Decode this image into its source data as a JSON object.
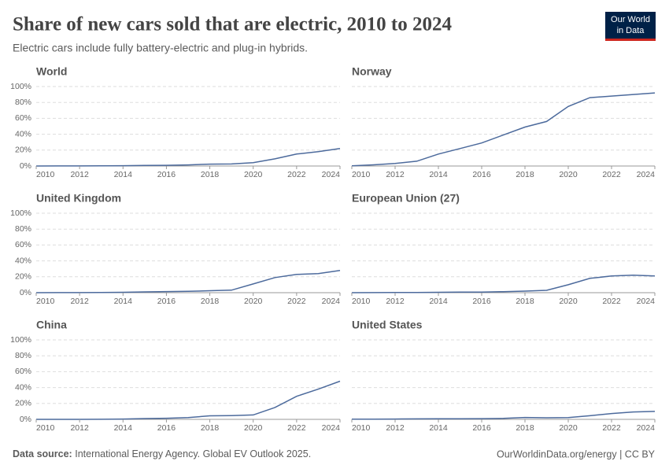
{
  "header": {
    "title": "Share of new cars sold that are electric, 2010 to 2024",
    "subtitle": "Electric cars include fully battery-electric and plug-in hybrids.",
    "logo": [
      "Our World",
      "in Data"
    ]
  },
  "footer": {
    "source_label": "Data source:",
    "source": "International Energy Agency. Global EV Outlook 2025.",
    "credit": "OurWorldinData.org/energy | CC BY"
  },
  "chart_data": [
    {
      "type": "line",
      "title": "World",
      "color": "#4c6a9c",
      "grid": true,
      "x": [
        2010,
        2011,
        2012,
        2013,
        2014,
        2015,
        2016,
        2017,
        2018,
        2019,
        2020,
        2021,
        2022,
        2023,
        2024
      ],
      "values": [
        0.01,
        0.05,
        0.1,
        0.2,
        0.4,
        0.7,
        0.9,
        1.4,
        2.4,
        2.6,
        4.2,
        9,
        15,
        18,
        22
      ],
      "xlim": [
        2010,
        2024
      ],
      "xticks": [
        2010,
        2012,
        2014,
        2016,
        2018,
        2020,
        2022,
        2024
      ],
      "ylim": [
        0,
        100
      ],
      "yticks": [
        {
          "value": 0,
          "label": "0%"
        },
        {
          "value": 20,
          "label": "20%"
        },
        {
          "value": 40,
          "label": "40%"
        },
        {
          "value": 60,
          "label": "60%"
        },
        {
          "value": 80,
          "label": "80%"
        },
        {
          "value": 100,
          "label": "100%"
        }
      ]
    },
    {
      "type": "line",
      "title": "Norway",
      "color": "#4c6a9c",
      "grid": true,
      "x": [
        2010,
        2011,
        2012,
        2013,
        2014,
        2015,
        2016,
        2017,
        2018,
        2019,
        2020,
        2021,
        2022,
        2023,
        2024
      ],
      "values": [
        0.3,
        1.5,
        3.3,
        6,
        15,
        22,
        29,
        39,
        49,
        56,
        75,
        86,
        88,
        90,
        92
      ],
      "xlim": [
        2010,
        2024
      ],
      "xticks": [
        2010,
        2012,
        2014,
        2016,
        2018,
        2020,
        2022,
        2024
      ],
      "ylim": [
        0,
        100
      ],
      "yticks": [
        0,
        20,
        40,
        60,
        80,
        100
      ]
    },
    {
      "type": "line",
      "title": "United Kingdom",
      "color": "#4c6a9c",
      "grid": true,
      "x": [
        2010,
        2011,
        2012,
        2013,
        2014,
        2015,
        2016,
        2017,
        2018,
        2019,
        2020,
        2021,
        2022,
        2023,
        2024
      ],
      "values": [
        0,
        0.1,
        0.1,
        0.2,
        0.5,
        1,
        1.4,
        1.7,
        2.5,
        3.2,
        11,
        19,
        23,
        24,
        28
      ],
      "xlim": [
        2010,
        2024
      ],
      "xticks": [
        2010,
        2012,
        2014,
        2016,
        2018,
        2020,
        2022,
        2024
      ],
      "ylim": [
        0,
        100
      ],
      "yticks": [
        {
          "value": 0,
          "label": "0%"
        },
        {
          "value": 20,
          "label": "20%"
        },
        {
          "value": 40,
          "label": "40%"
        },
        {
          "value": 60,
          "label": "60%"
        },
        {
          "value": 80,
          "label": "80%"
        },
        {
          "value": 100,
          "label": "100%"
        }
      ]
    },
    {
      "type": "line",
      "title": "European Union (27)",
      "color": "#4c6a9c",
      "grid": true,
      "x": [
        2010,
        2011,
        2012,
        2013,
        2014,
        2015,
        2016,
        2017,
        2018,
        2019,
        2020,
        2021,
        2022,
        2023,
        2024
      ],
      "values": [
        0,
        0.1,
        0.2,
        0.3,
        0.5,
        0.7,
        0.8,
        1.3,
        2,
        3,
        10,
        18,
        21,
        22,
        21
      ],
      "xlim": [
        2010,
        2024
      ],
      "xticks": [
        2010,
        2012,
        2014,
        2016,
        2018,
        2020,
        2022,
        2024
      ],
      "ylim": [
        0,
        100
      ],
      "yticks": [
        0,
        20,
        40,
        60,
        80,
        100
      ]
    },
    {
      "type": "line",
      "title": "China",
      "color": "#4c6a9c",
      "grid": true,
      "x": [
        2010,
        2011,
        2012,
        2013,
        2014,
        2015,
        2016,
        2017,
        2018,
        2019,
        2020,
        2021,
        2022,
        2023,
        2024
      ],
      "values": [
        0,
        0,
        0,
        0.1,
        0.4,
        1,
        1.4,
        2.2,
        4.5,
        4.8,
        5.5,
        15,
        29,
        38,
        48
      ],
      "xlim": [
        2010,
        2024
      ],
      "xticks": [
        2010,
        2012,
        2014,
        2016,
        2018,
        2020,
        2022,
        2024
      ],
      "ylim": [
        0,
        100
      ],
      "yticks": [
        {
          "value": 0,
          "label": "0%"
        },
        {
          "value": 20,
          "label": "20%"
        },
        {
          "value": 40,
          "label": "40%"
        },
        {
          "value": 60,
          "label": "60%"
        },
        {
          "value": 80,
          "label": "80%"
        },
        {
          "value": 100,
          "label": "100%"
        }
      ]
    },
    {
      "type": "line",
      "title": "United States",
      "color": "#4c6a9c",
      "grid": true,
      "x": [
        2010,
        2011,
        2012,
        2013,
        2014,
        2015,
        2016,
        2017,
        2018,
        2019,
        2020,
        2021,
        2022,
        2023,
        2024
      ],
      "values": [
        0.2,
        0.2,
        0.4,
        0.6,
        0.7,
        0.7,
        0.9,
        1.2,
        2.4,
        2,
        2.2,
        4.6,
        7.3,
        9.3,
        10
      ],
      "xlim": [
        2010,
        2024
      ],
      "xticks": [
        2010,
        2012,
        2014,
        2016,
        2018,
        2020,
        2022,
        2024
      ],
      "ylim": [
        0,
        100
      ],
      "yticks": [
        0,
        20,
        40,
        60,
        80,
        100
      ]
    }
  ]
}
